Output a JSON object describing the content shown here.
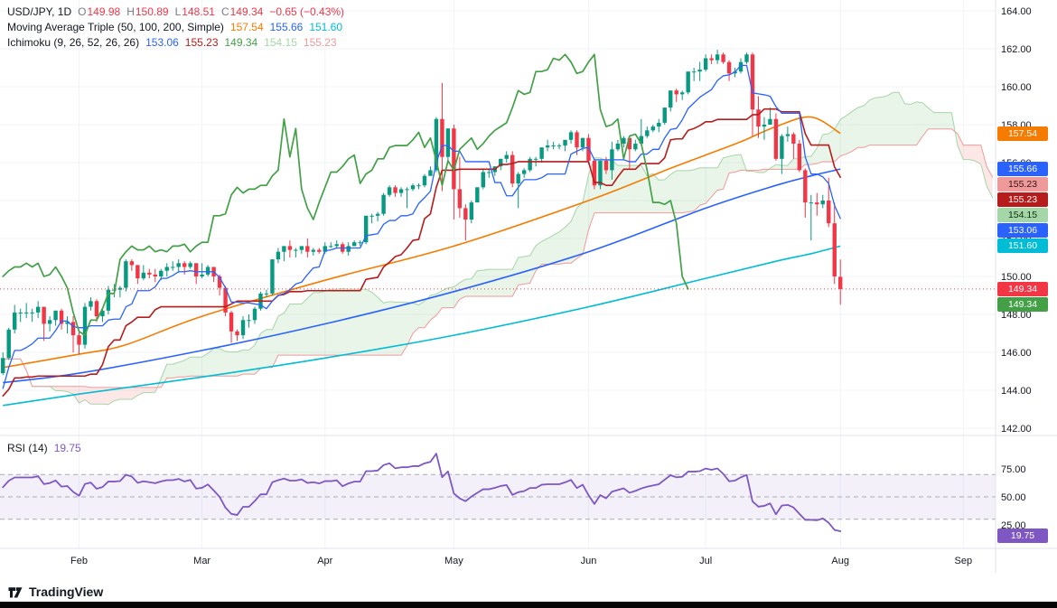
{
  "header": {
    "symbol_legend": {
      "title": "USD/JPY, 1D",
      "ohlc": [
        {
          "label": "O",
          "value": "149.98"
        },
        {
          "label": "H",
          "value": "150.89"
        },
        {
          "label": "L",
          "value": "148.51"
        },
        {
          "label": "C",
          "value": "149.34"
        }
      ],
      "change": "−0.65 (−0.43%)",
      "ohlc_color": "#f23645"
    },
    "ma_legend": {
      "title": "Moving Average Triple (50, 100, 200, Simple)",
      "values": [
        {
          "text": "157.54",
          "color": "#f57c00"
        },
        {
          "text": "155.66",
          "color": "#2962ff"
        },
        {
          "text": "151.60",
          "color": "#00bcd4"
        }
      ]
    },
    "ichimoku_legend": {
      "title": "Ichimoku (9, 26, 52, 26, 26)",
      "values": [
        {
          "text": "153.06",
          "color": "#2962ff"
        },
        {
          "text": "155.23",
          "color": "#b71c1c"
        },
        {
          "text": "149.34",
          "color": "#43a047"
        },
        {
          "text": "154.15",
          "color": "#a5d6a7"
        },
        {
          "text": "155.23",
          "color": "#ef9a9a"
        }
      ]
    }
  },
  "rsi_legend": {
    "title": "RSI (14)",
    "value": "19.75",
    "color": "#7e57c2"
  },
  "price_axis": {
    "ticks": [
      "164.00",
      "162.00",
      "160.00",
      "158.00",
      "156.00",
      "154.00",
      "152.00",
      "150.00",
      "148.00",
      "146.00",
      "144.00",
      "142.00"
    ],
    "badges": [
      {
        "text": "157.54",
        "price": 157.54,
        "bg": "#f57c00",
        "fg": "#ffffff"
      },
      {
        "text": "155.66",
        "price": 155.66,
        "bg": "#2962ff",
        "fg": "#ffffff"
      },
      {
        "text": "155.23",
        "price": 155.23,
        "bg": "#ef9a9a",
        "fg": "#3a1212"
      },
      {
        "text": "155.23",
        "price": 155.23,
        "bg": "#b71c1c",
        "fg": "#ffffff"
      },
      {
        "text": "154.15",
        "price": 154.15,
        "bg": "#a5d6a7",
        "fg": "#0f2e10"
      },
      {
        "text": "153.06",
        "price": 153.06,
        "bg": "#2962ff",
        "fg": "#ffffff"
      },
      {
        "text": "151.60",
        "price": 151.6,
        "bg": "#00bcd4",
        "fg": "#ffffff"
      },
      {
        "text": "149.34",
        "price": 149.34,
        "bg": "#f23645",
        "fg": "#ffffff"
      },
      {
        "text": "149.34",
        "price": 149.34,
        "bg": "#43a047",
        "fg": "#ffffff"
      }
    ]
  },
  "rsi_axis": {
    "ticks": [
      "75.00",
      "50.00",
      "25.00"
    ],
    "badge": {
      "text": "19.75",
      "value": 19.75,
      "bg": "#7e57c2",
      "fg": "#ffffff"
    }
  },
  "time_axis": {
    "labels": [
      {
        "label": "Feb",
        "bar": 39
      },
      {
        "label": "Mar",
        "bar": 60
      },
      {
        "label": "Apr",
        "bar": 81
      },
      {
        "label": "May",
        "bar": 103
      },
      {
        "label": "Jun",
        "bar": 126
      },
      {
        "label": "Jul",
        "bar": 146
      },
      {
        "label": "Aug",
        "bar": 169
      },
      {
        "label": "Sep",
        "bar": 190
      }
    ]
  },
  "footer": {
    "brand": "TradingView"
  },
  "chart_data": {
    "type": "candlestick",
    "symbol": "USD/JPY",
    "interval": "1D",
    "y_axis": {
      "min": 142,
      "max": 164.5,
      "tick_step": 2
    },
    "future_bars": 26,
    "style": {
      "up": "#089981",
      "down": "#f23645",
      "grid": "#f0f3fa"
    },
    "candles": [
      [
        144.9,
        146.0,
        144.8,
        145.7
      ],
      [
        145.7,
        147.3,
        145.6,
        147.2
      ],
      [
        147.2,
        148.5,
        147.0,
        148.1
      ],
      [
        148.1,
        148.3,
        147.6,
        148.1
      ],
      [
        148.1,
        148.6,
        147.8,
        148.1
      ],
      [
        148.1,
        148.3,
        147.6,
        148.1
      ],
      [
        148.1,
        148.7,
        147.8,
        148.4
      ],
      [
        148.4,
        148.4,
        146.6,
        147.5
      ],
      [
        147.5,
        147.9,
        147.1,
        147.7
      ],
      [
        147.7,
        148.2,
        147.4,
        148.2
      ],
      [
        148.2,
        148.3,
        147.2,
        147.5
      ],
      [
        147.5,
        147.9,
        147.0,
        147.6
      ],
      [
        147.6,
        147.9,
        146.0,
        146.9
      ],
      [
        146.9,
        147.1,
        145.9,
        146.4
      ],
      [
        146.4,
        148.6,
        146.2,
        148.4
      ],
      [
        148.4,
        148.9,
        148.2,
        148.7
      ],
      [
        148.7,
        148.8,
        147.6,
        147.9
      ],
      [
        147.9,
        148.3,
        147.6,
        148.2
      ],
      [
        148.2,
        149.5,
        148.0,
        149.3
      ],
      [
        149.3,
        149.6,
        148.9,
        149.3
      ],
      [
        149.3,
        149.5,
        148.9,
        149.4
      ],
      [
        149.4,
        150.9,
        149.2,
        150.8
      ],
      [
        150.8,
        150.9,
        150.3,
        150.6
      ],
      [
        150.6,
        150.6,
        149.6,
        149.9
      ],
      [
        149.9,
        150.6,
        149.8,
        150.2
      ],
      [
        150.2,
        150.4,
        149.9,
        150.1
      ],
      [
        150.1,
        150.4,
        149.7,
        150.0
      ],
      [
        150.0,
        150.4,
        149.8,
        150.3
      ],
      [
        150.3,
        150.7,
        150.0,
        150.5
      ],
      [
        150.5,
        150.8,
        150.3,
        150.5
      ],
      [
        150.5,
        150.9,
        150.2,
        150.7
      ],
      [
        150.7,
        150.8,
        150.1,
        150.5
      ],
      [
        150.5,
        150.8,
        150.4,
        150.7
      ],
      [
        150.7,
        150.7,
        149.6,
        150.0
      ],
      [
        150.0,
        150.7,
        149.9,
        150.1
      ],
      [
        150.1,
        150.6,
        150.0,
        150.5
      ],
      [
        150.5,
        150.5,
        149.7,
        150.0
      ],
      [
        150.0,
        150.1,
        149.0,
        149.4
      ],
      [
        149.4,
        149.5,
        147.9,
        148.1
      ],
      [
        148.1,
        148.2,
        146.5,
        147.1
      ],
      [
        147.1,
        147.2,
        146.6,
        146.9
      ],
      [
        146.9,
        147.9,
        146.7,
        147.7
      ],
      [
        147.7,
        148.0,
        147.3,
        147.7
      ],
      [
        147.7,
        148.4,
        147.5,
        148.3
      ],
      [
        148.3,
        149.2,
        148.2,
        149.1
      ],
      [
        149.1,
        149.3,
        148.9,
        149.1
      ],
      [
        149.1,
        150.9,
        149.0,
        150.9
      ],
      [
        150.9,
        151.5,
        150.7,
        151.3
      ],
      [
        151.3,
        151.6,
        150.8,
        151.6
      ],
      [
        151.6,
        151.9,
        151.0,
        151.4
      ],
      [
        151.4,
        151.5,
        151.0,
        151.4
      ],
      [
        151.4,
        151.6,
        151.2,
        151.6
      ],
      [
        151.6,
        152.0,
        151.0,
        151.3
      ],
      [
        151.3,
        151.5,
        151.1,
        151.4
      ],
      [
        151.4,
        151.5,
        151.2,
        151.3
      ],
      [
        151.3,
        151.8,
        151.2,
        151.6
      ],
      [
        151.6,
        151.8,
        151.5,
        151.6
      ],
      [
        151.6,
        151.9,
        151.5,
        151.7
      ],
      [
        151.7,
        151.8,
        151.2,
        151.3
      ],
      [
        151.3,
        151.8,
        151.1,
        151.6
      ],
      [
        151.6,
        151.9,
        151.6,
        151.8
      ],
      [
        151.8,
        151.9,
        151.6,
        151.8
      ],
      [
        151.8,
        153.2,
        151.7,
        153.2
      ],
      [
        153.2,
        153.3,
        152.8,
        153.2
      ],
      [
        153.2,
        153.4,
        152.9,
        153.3
      ],
      [
        153.3,
        154.4,
        153.2,
        154.3
      ],
      [
        154.3,
        154.8,
        154.2,
        154.7
      ],
      [
        154.7,
        154.8,
        154.2,
        154.4
      ],
      [
        154.4,
        154.7,
        154.2,
        154.6
      ],
      [
        154.6,
        154.7,
        153.6,
        154.6
      ],
      [
        154.6,
        154.9,
        154.5,
        154.8
      ],
      [
        154.8,
        154.9,
        154.6,
        154.8
      ],
      [
        154.8,
        155.4,
        154.7,
        155.3
      ],
      [
        155.3,
        155.8,
        155.3,
        155.6
      ],
      [
        155.6,
        158.4,
        155.5,
        158.3
      ],
      [
        158.3,
        160.2,
        154.5,
        156.3
      ],
      [
        156.3,
        157.8,
        156.0,
        157.8
      ],
      [
        157.8,
        158.0,
        153.0,
        154.6
      ],
      [
        154.6,
        156.3,
        153.1,
        153.6
      ],
      [
        153.6,
        153.8,
        151.9,
        153.0
      ],
      [
        153.0,
        154.0,
        152.8,
        153.9
      ],
      [
        153.9,
        154.7,
        153.9,
        154.7
      ],
      [
        154.7,
        155.7,
        154.6,
        155.5
      ],
      [
        155.5,
        155.7,
        155.2,
        155.5
      ],
      [
        155.5,
        155.8,
        155.3,
        155.8
      ],
      [
        155.8,
        156.2,
        155.6,
        156.2
      ],
      [
        156.2,
        156.6,
        156.0,
        156.4
      ],
      [
        156.4,
        156.6,
        154.7,
        154.9
      ],
      [
        154.9,
        155.5,
        153.6,
        155.4
      ],
      [
        155.4,
        155.7,
        155.2,
        155.6
      ],
      [
        155.6,
        156.3,
        155.5,
        156.2
      ],
      [
        156.2,
        156.3,
        155.8,
        156.2
      ],
      [
        156.2,
        156.8,
        156.0,
        156.8
      ],
      [
        156.8,
        157.2,
        156.6,
        156.9
      ],
      [
        156.9,
        157.1,
        156.7,
        156.9
      ],
      [
        156.9,
        157.0,
        156.7,
        156.9
      ],
      [
        156.9,
        157.2,
        156.6,
        157.2
      ],
      [
        157.2,
        157.7,
        157.0,
        157.6
      ],
      [
        157.6,
        157.7,
        156.4,
        156.8
      ],
      [
        156.8,
        157.3,
        156.6,
        157.3
      ],
      [
        157.3,
        157.5,
        155.9,
        156.1
      ],
      [
        156.1,
        156.2,
        154.6,
        154.8
      ],
      [
        154.8,
        156.1,
        154.6,
        156.1
      ],
      [
        156.1,
        156.3,
        155.4,
        155.6
      ],
      [
        155.6,
        157.1,
        155.1,
        156.7
      ],
      [
        156.7,
        157.2,
        156.6,
        157.0
      ],
      [
        157.0,
        157.4,
        156.8,
        157.3
      ],
      [
        157.3,
        157.3,
        155.7,
        156.7
      ],
      [
        156.7,
        157.2,
        156.6,
        157.0
      ],
      [
        157.0,
        158.3,
        156.9,
        157.4
      ],
      [
        157.4,
        157.9,
        157.3,
        157.7
      ],
      [
        157.7,
        158.0,
        157.6,
        157.9
      ],
      [
        157.9,
        158.3,
        157.6,
        158.1
      ],
      [
        158.1,
        158.9,
        158.0,
        158.9
      ],
      [
        158.9,
        159.8,
        158.7,
        159.8
      ],
      [
        159.8,
        159.9,
        159.2,
        159.6
      ],
      [
        159.6,
        159.8,
        159.3,
        159.7
      ],
      [
        159.7,
        160.8,
        159.6,
        160.8
      ],
      [
        160.8,
        161.0,
        160.3,
        160.8
      ],
      [
        160.8,
        161.3,
        160.3,
        160.9
      ],
      [
        160.9,
        161.7,
        160.8,
        161.5
      ],
      [
        161.5,
        161.7,
        161.2,
        161.4
      ],
      [
        161.4,
        161.95,
        161.2,
        161.7
      ],
      [
        161.7,
        161.8,
        161.2,
        161.3
      ],
      [
        161.3,
        161.4,
        160.3,
        160.7
      ],
      [
        160.7,
        161.0,
        160.5,
        160.8
      ],
      [
        160.8,
        161.5,
        160.7,
        161.3
      ],
      [
        161.3,
        161.8,
        161.2,
        161.7
      ],
      [
        161.7,
        161.8,
        157.4,
        158.8
      ],
      [
        158.8,
        159.5,
        157.3,
        157.9
      ],
      [
        157.9,
        158.4,
        157.2,
        158.0
      ],
      [
        158.0,
        158.9,
        158.0,
        158.3
      ],
      [
        158.3,
        158.6,
        156.1,
        156.2
      ],
      [
        156.2,
        157.5,
        155.4,
        157.4
      ],
      [
        157.4,
        157.9,
        157.1,
        157.5
      ],
      [
        157.5,
        157.6,
        156.2,
        157.0
      ],
      [
        157.0,
        157.2,
        155.5,
        155.6
      ],
      [
        155.6,
        155.7,
        153.1,
        153.9
      ],
      [
        153.9,
        154.3,
        151.9,
        153.9
      ],
      [
        153.9,
        154.4,
        153.2,
        153.8
      ],
      [
        153.8,
        154.3,
        153.6,
        154.0
      ],
      [
        154.0,
        155.2,
        152.6,
        152.8
      ],
      [
        152.8,
        153.9,
        149.6,
        150.0
      ],
      [
        149.98,
        150.89,
        148.51,
        149.34
      ]
    ],
    "warmup_candles_offscreen": [
      [
        147.3,
        147.5,
        143.8,
        144.1
      ],
      [
        144.1,
        145.2,
        143.9,
        145.0
      ],
      [
        145.0,
        146.6,
        144.9,
        146.2
      ],
      [
        146.2,
        146.4,
        145.6,
        145.8
      ],
      [
        145.8,
        145.9,
        142.6,
        142.9
      ],
      [
        142.9,
        143.0,
        140.9,
        141.9
      ],
      [
        141.9,
        142.5,
        141.8,
        142.2
      ],
      [
        142.2,
        142.9,
        142.0,
        142.8
      ],
      [
        142.8,
        144.0,
        142.1,
        143.8
      ],
      [
        143.8,
        144.0,
        143.3,
        143.6
      ],
      [
        143.6,
        143.9,
        142.0,
        142.1
      ],
      [
        142.1,
        142.6,
        141.9,
        142.4
      ],
      [
        142.4,
        142.6,
        142.2,
        142.4
      ],
      [
        142.4,
        142.7,
        142.2,
        142.4
      ],
      [
        142.4,
        142.6,
        141.6,
        141.8
      ],
      [
        141.8,
        141.9,
        140.8,
        140.9
      ],
      [
        140.9,
        141.5,
        140.8,
        141.0
      ],
      [
        141.0,
        142.0,
        140.8,
        141.9
      ],
      [
        141.9,
        143.4,
        141.8,
        143.3
      ],
      [
        143.3,
        144.7,
        143.1,
        144.6
      ],
      [
        144.6,
        145.0,
        143.8,
        144.6
      ],
      [
        144.6,
        144.9,
        143.7,
        144.2
      ],
      [
        144.2,
        144.6,
        143.9,
        144.5
      ],
      [
        144.5,
        145.8,
        144.3,
        145.7
      ],
      [
        145.7,
        146.4,
        145.2,
        145.3
      ],
      [
        145.3,
        145.6,
        144.8,
        144.9
      ]
    ],
    "moving_averages": [
      {
        "period": 50,
        "color": "#f57c00",
        "points": [
          [
            26,
            145.2
          ],
          [
            39,
            145.9
          ],
          [
            47,
            146.4
          ],
          [
            60,
            147.9
          ],
          [
            81,
            149.8
          ],
          [
            103,
            151.6
          ],
          [
            126,
            154.0
          ],
          [
            140,
            155.7
          ],
          [
            146,
            156.4
          ],
          [
            152,
            157.1
          ],
          [
            158,
            157.9
          ],
          [
            164,
            158.4
          ],
          [
            169,
            157.54
          ]
        ]
      },
      {
        "period": 100,
        "color": "#2962ff",
        "points": [
          [
            26,
            144.4
          ],
          [
            39,
            144.9
          ],
          [
            60,
            146.1
          ],
          [
            81,
            147.5
          ],
          [
            103,
            149.2
          ],
          [
            126,
            151.3
          ],
          [
            146,
            153.6
          ],
          [
            158,
            154.8
          ],
          [
            164,
            155.3
          ],
          [
            169,
            155.66
          ]
        ]
      },
      {
        "period": 200,
        "color": "#00bcd4",
        "points": [
          [
            26,
            143.2
          ],
          [
            39,
            143.8
          ],
          [
            60,
            144.7
          ],
          [
            81,
            145.7
          ],
          [
            103,
            146.9
          ],
          [
            126,
            148.4
          ],
          [
            146,
            149.9
          ],
          [
            158,
            150.8
          ],
          [
            164,
            151.2
          ],
          [
            169,
            151.6
          ]
        ]
      }
    ],
    "ichimoku": {
      "params": [
        9,
        26,
        52,
        26,
        26
      ],
      "colors": {
        "conversion": "#2962ff",
        "base": "#b71c1c",
        "lagging": "#43a047",
        "lead_a": "#a5d6a7",
        "lead_b": "#ef9a9a"
      },
      "cloud_up_fill": "rgba(76,175,80,0.13)",
      "cloud_down_fill": "rgba(244,67,54,0.12)",
      "values": {
        "conversion": 153.06,
        "base": 155.23,
        "lagging": 149.34,
        "lead_a": 154.15,
        "lead_b": 155.23
      }
    },
    "price_line": {
      "value": 149.34,
      "color": "#f23645"
    },
    "rsi": {
      "period": 14,
      "last": 19.75,
      "band": [
        30,
        70
      ],
      "band_fill": "rgba(126,87,194,0.09)",
      "color": "#7e57c2"
    }
  }
}
